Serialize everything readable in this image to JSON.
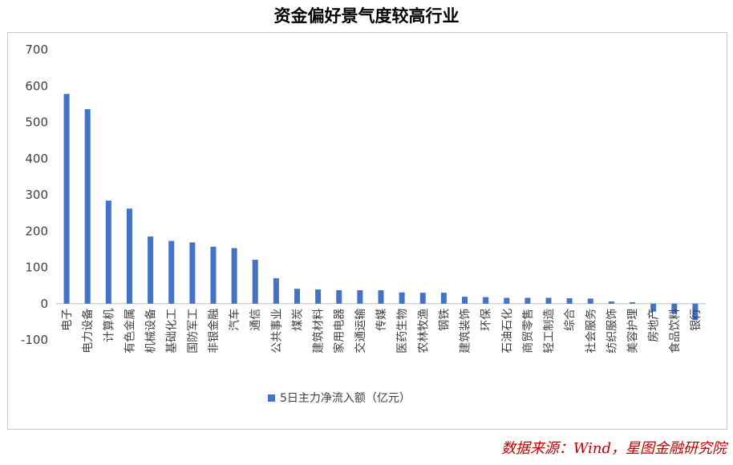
{
  "chart_data": {
    "type": "bar",
    "title": "资金偏好景气度较高行业",
    "categories": [
      "电子",
      "电力设备",
      "计算机",
      "有色金属",
      "机械设备",
      "基础化工",
      "国防军工",
      "非银金融",
      "汽车",
      "通信",
      "公共事业",
      "煤炭",
      "建筑材料",
      "家用电器",
      "交通运输",
      "传媒",
      "医药生物",
      "农林牧渔",
      "钢铁",
      "建筑装饰",
      "环保",
      "石油石化",
      "商贸零售",
      "轻工制造",
      "综合",
      "社会服务",
      "纺织服饰",
      "美容护理",
      "房地产",
      "食品饮料",
      "银行"
    ],
    "series": [
      {
        "name": "5日主力净流入额（亿元）",
        "values": [
          578,
          536,
          284,
          262,
          185,
          173,
          169,
          157,
          153,
          121,
          70,
          41,
          39,
          37,
          37,
          37,
          31,
          30,
          30,
          19,
          18,
          16,
          16,
          16,
          15,
          14,
          6,
          4,
          -22,
          -28,
          -45
        ]
      }
    ],
    "yticks": [
      -100,
      0,
      100,
      200,
      300,
      400,
      500,
      600,
      700
    ],
    "ylim": [
      -100,
      700
    ],
    "xlabel": "",
    "ylabel": "",
    "grid": false,
    "legend_position": "bottom",
    "colors": {
      "bar": "#4472C4",
      "axis": "#bfbfbf",
      "text": "#404040"
    }
  },
  "source_note": "数据来源：Wind，星图金融研究院"
}
